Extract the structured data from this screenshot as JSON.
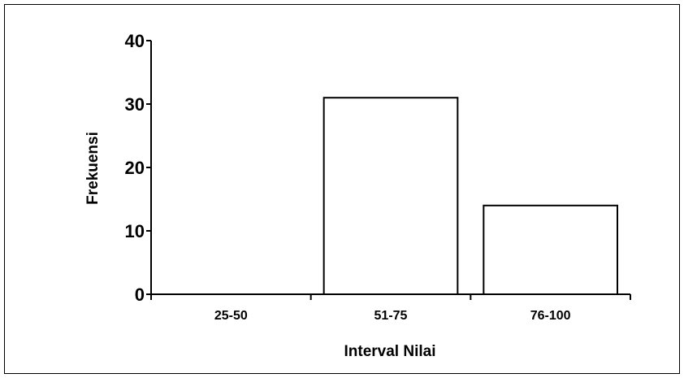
{
  "chart_data": {
    "type": "bar",
    "title": "",
    "xlabel": "Interval Nilai",
    "ylabel": "Frekuensi",
    "categories": [
      "25-50",
      "51-75",
      "76-100"
    ],
    "values": [
      0,
      31,
      14
    ],
    "ylim": [
      0,
      40
    ],
    "yticks": [
      0,
      10,
      20,
      30,
      40
    ],
    "grid": false,
    "legend": "none",
    "colors": {
      "bar_fill": "#ffffff",
      "bar_stroke": "#000000",
      "axis": "#000000"
    }
  }
}
